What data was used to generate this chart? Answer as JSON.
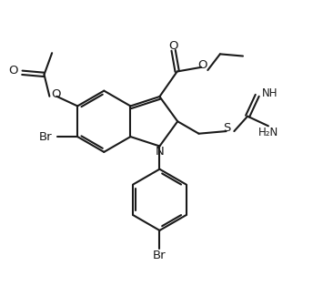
{
  "bg_color": "#ffffff",
  "line_color": "#1a1a1a",
  "line_width": 1.5,
  "text_color": "#1a1a1a",
  "font_size": 8.5,
  "figsize": [
    3.66,
    3.14
  ],
  "dpi": 100,
  "xlim": [
    0,
    9.2
  ],
  "ylim": [
    0,
    7.9
  ]
}
